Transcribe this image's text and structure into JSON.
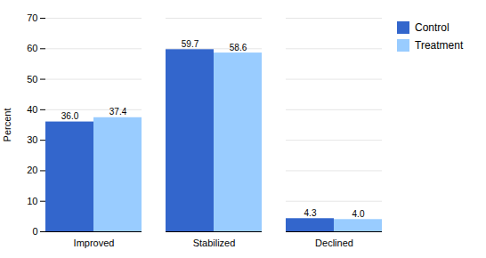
{
  "chart_data": {
    "type": "bar",
    "categories": [
      "Improved",
      "Stabilized",
      "Declined"
    ],
    "series": [
      {
        "name": "Control",
        "color": "#3366CC",
        "values": [
          36.0,
          59.7,
          4.3
        ],
        "value_labels": [
          "36.0",
          "59.7",
          "4.3"
        ]
      },
      {
        "name": "Treatment",
        "color": "#99CCFF",
        "values": [
          37.4,
          58.6,
          4.0
        ],
        "value_labels": [
          "37.4",
          "58.6",
          "4.0"
        ]
      }
    ],
    "ylabel": "Percent",
    "ylim": [
      0,
      70
    ],
    "yticks": [
      0,
      10,
      20,
      30,
      40,
      50,
      60,
      70
    ],
    "grid": true,
    "data_labels": true,
    "legend": "right"
  }
}
